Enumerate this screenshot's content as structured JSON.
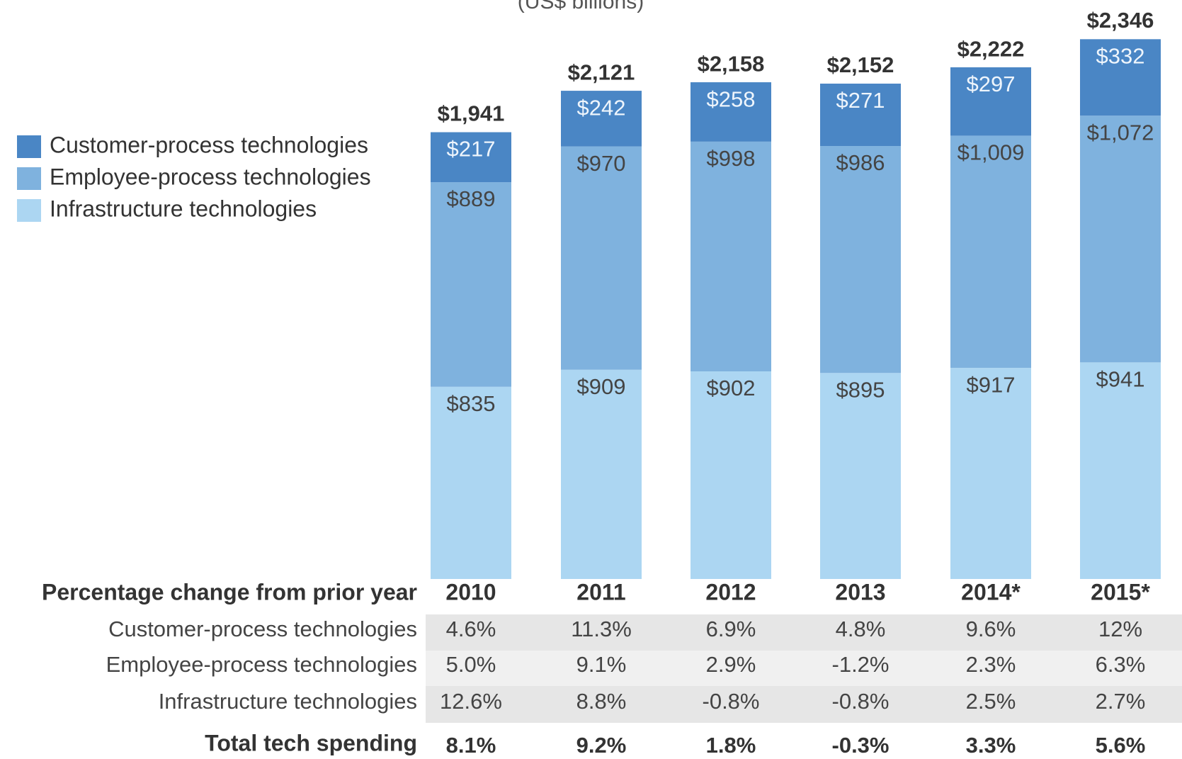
{
  "chart_data": {
    "type": "bar",
    "subtitle": "(US$ billions)",
    "categories": [
      "2010",
      "2011",
      "2012",
      "2013",
      "2014*",
      "2015*"
    ],
    "series": [
      {
        "name": "Customer-process technologies",
        "color": "#4a86c5",
        "values": [
          217,
          242,
          258,
          271,
          297,
          332
        ],
        "value_labels": [
          "$217",
          "$242",
          "$258",
          "$271",
          "$297",
          "$332"
        ]
      },
      {
        "name": "Employee-process technologies",
        "color": "#7fb2de",
        "values": [
          889,
          970,
          998,
          986,
          1009,
          1072
        ],
        "value_labels": [
          "$889",
          "$970",
          "$998",
          "$986",
          "$1,009",
          "$1,072"
        ]
      },
      {
        "name": "Infrastructure technologies",
        "color": "#acd6f2",
        "values": [
          835,
          909,
          902,
          895,
          917,
          941
        ],
        "value_labels": [
          "$835",
          "$909",
          "$902",
          "$895",
          "$917",
          "$941"
        ]
      }
    ],
    "totals": [
      1941,
      2121,
      2158,
      2152,
      2222,
      2346
    ],
    "total_labels": [
      "$1,941",
      "$2,121",
      "$2,158",
      "$2,152",
      "$2,222",
      "$2,346"
    ],
    "legend": "left"
  },
  "table": {
    "header": "Percentage change from prior year",
    "rows": [
      {
        "label": "Customer-process technologies",
        "values": [
          "4.6%",
          "11.3%",
          "6.9%",
          "4.8%",
          "9.6%",
          "12%"
        ]
      },
      {
        "label": "Employee-process technologies",
        "values": [
          "5.0%",
          "9.1%",
          "2.9%",
          "-1.2%",
          "2.3%",
          "6.3%"
        ]
      },
      {
        "label": "Infrastructure technologies",
        "values": [
          "12.6%",
          "8.8%",
          "-0.8%",
          "-0.8%",
          "2.5%",
          "2.7%"
        ]
      }
    ],
    "total": {
      "label": "Total tech spending",
      "values": [
        "8.1%",
        "9.2%",
        "1.8%",
        "-0.3%",
        "3.3%",
        "5.6%"
      ]
    }
  }
}
